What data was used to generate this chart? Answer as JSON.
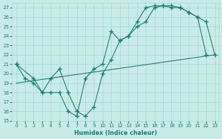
{
  "xlabel": "Humidex (Indice chaleur)",
  "background_color": "#c8ebe8",
  "grid_color": "#a0d4d0",
  "line_color": "#1a7a72",
  "xlim": [
    -0.5,
    23.5
  ],
  "ylim": [
    15,
    27.5
  ],
  "yticks": [
    15,
    16,
    17,
    18,
    19,
    20,
    21,
    22,
    23,
    24,
    25,
    26,
    27
  ],
  "xticks": [
    0,
    1,
    2,
    3,
    4,
    5,
    6,
    7,
    8,
    9,
    10,
    11,
    12,
    13,
    14,
    15,
    16,
    17,
    18,
    19,
    20,
    21,
    22,
    23
  ],
  "line1_x": [
    0,
    1,
    2,
    3,
    4,
    5,
    6,
    7,
    8,
    9,
    10,
    11,
    12,
    13,
    14,
    15,
    16,
    17,
    18,
    19,
    20,
    21,
    22
  ],
  "line1_y": [
    21,
    19.5,
    19,
    18,
    18,
    18,
    16,
    15.5,
    19.5,
    20.5,
    21,
    24.5,
    23.5,
    24,
    25.5,
    27,
    27.2,
    27.2,
    27,
    27,
    26.5,
    26,
    22
  ],
  "line2_x": [
    0,
    2,
    3,
    4,
    5,
    6,
    7,
    8,
    9,
    10,
    11,
    12,
    13,
    14,
    15,
    16,
    17,
    18,
    19,
    20,
    21,
    22,
    23
  ],
  "line2_y": [
    21,
    19.5,
    18,
    19.5,
    20.5,
    18,
    16,
    15.5,
    16.5,
    20,
    21.5,
    23.5,
    24,
    25,
    25.5,
    27,
    27.2,
    27.2,
    27,
    26.5,
    26,
    25.5,
    22
  ],
  "line3_x": [
    0,
    23
  ],
  "line3_y": [
    19,
    22
  ]
}
